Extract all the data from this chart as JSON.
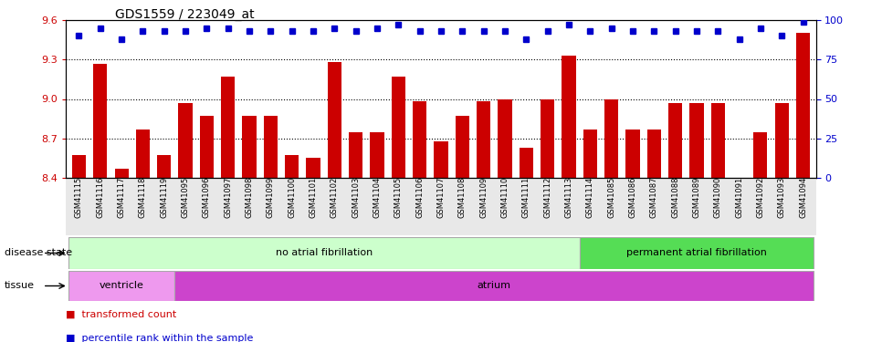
{
  "title": "GDS1559 / 223049_at",
  "samples": [
    "GSM41115",
    "GSM41116",
    "GSM41117",
    "GSM41118",
    "GSM41119",
    "GSM41095",
    "GSM41096",
    "GSM41097",
    "GSM41098",
    "GSM41099",
    "GSM41100",
    "GSM41101",
    "GSM41102",
    "GSM41103",
    "GSM41104",
    "GSM41105",
    "GSM41106",
    "GSM41107",
    "GSM41108",
    "GSM41109",
    "GSM41110",
    "GSM41111",
    "GSM41112",
    "GSM41113",
    "GSM41114",
    "GSM41085",
    "GSM41086",
    "GSM41087",
    "GSM41088",
    "GSM41089",
    "GSM41090",
    "GSM41091",
    "GSM41092",
    "GSM41093",
    "GSM41094"
  ],
  "bar_values": [
    8.57,
    9.27,
    8.47,
    8.77,
    8.57,
    8.97,
    8.87,
    9.17,
    8.87,
    8.87,
    8.57,
    8.55,
    9.28,
    8.75,
    8.75,
    9.17,
    8.98,
    8.68,
    8.87,
    8.98,
    9.0,
    8.63,
    9.0,
    9.33,
    8.77,
    9.0,
    8.77,
    8.77,
    8.97,
    8.97,
    8.97,
    8.4,
    8.75,
    8.97,
    9.5
  ],
  "percentile_values": [
    90,
    95,
    88,
    93,
    93,
    93,
    95,
    95,
    93,
    93,
    93,
    93,
    95,
    93,
    95,
    97,
    93,
    93,
    93,
    93,
    93,
    88,
    93,
    97,
    93,
    95,
    93,
    93,
    93,
    93,
    93,
    88,
    95,
    90,
    99
  ],
  "ylim_left": [
    8.4,
    9.6
  ],
  "ylim_right": [
    0,
    100
  ],
  "yticks_left": [
    8.4,
    8.7,
    9.0,
    9.3,
    9.6
  ],
  "yticks_right": [
    0,
    25,
    50,
    75,
    100
  ],
  "bar_color": "#cc0000",
  "dot_color": "#0000cc",
  "background_color": "#ffffff",
  "plot_bg_color": "#e8e8e8",
  "disease_state_groups": [
    {
      "label": "no atrial fibrillation",
      "start": 0,
      "end": 24,
      "color": "#ccffcc"
    },
    {
      "label": "permanent atrial fibrillation",
      "start": 24,
      "end": 35,
      "color": "#55dd55"
    }
  ],
  "tissue_groups": [
    {
      "label": "ventricle",
      "start": 0,
      "end": 5,
      "color": "#ee99ee"
    },
    {
      "label": "atrium",
      "start": 5,
      "end": 35,
      "color": "#cc44cc"
    }
  ],
  "disease_state_label": "disease state",
  "tissue_label": "tissue",
  "legend_red_label": "transformed count",
  "legend_blue_label": "percentile rank within the sample",
  "grid_lines": [
    8.7,
    9.0,
    9.3
  ]
}
